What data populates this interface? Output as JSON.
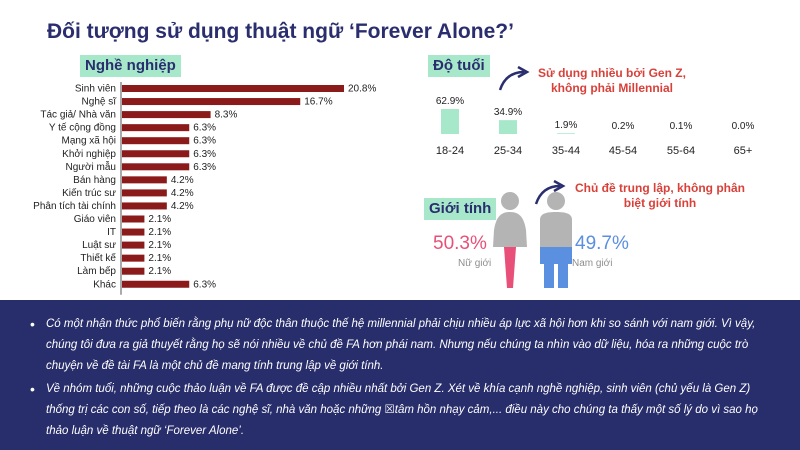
{
  "title": "Đối tượng sử dụng thuật ngữ ‘Forever Alone?’",
  "sections": {
    "occupation": "Nghề nghiệp",
    "age": "Độ tuổi",
    "gender": "Giới tính"
  },
  "chart_data": [
    {
      "type": "bar",
      "orientation": "horizontal",
      "title": "Nghề nghiệp",
      "categories": [
        "Sinh viên",
        "Nghệ sĩ",
        "Tác giả/ Nhà văn",
        "Y tế cộng đồng",
        "Mạng xã hội",
        "Khởi nghiệp",
        "Người mẫu",
        "Bán hàng",
        "Kiến trúc sư",
        "Phân tích tài chính",
        "Giáo viên",
        "IT",
        "Luật sư",
        "Thiết kế",
        "Làm bếp",
        "Khác"
      ],
      "values": [
        20.8,
        16.7,
        8.3,
        6.3,
        6.3,
        6.3,
        6.3,
        4.2,
        4.2,
        4.2,
        2.1,
        2.1,
        2.1,
        2.1,
        2.1,
        6.3
      ],
      "value_labels": [
        "20.8%",
        "16.7%",
        "8.3%",
        "6.3%",
        "6.3%",
        "6.3%",
        "6.3%",
        "4.2%",
        "4.2%",
        "4.2%",
        "2.1%",
        "2.1%",
        "2.1%",
        "2.1%",
        "2.1%",
        "6.3%"
      ],
      "unit": "%",
      "bar_color": "#8b1a1a",
      "xlim": [
        0,
        20.8
      ]
    },
    {
      "type": "bar",
      "orientation": "vertical",
      "title": "Độ tuổi",
      "categories": [
        "18-24",
        "25-34",
        "35-44",
        "45-54",
        "55-64",
        "65+"
      ],
      "values": [
        62.9,
        34.9,
        1.9,
        0.2,
        0.1,
        0.0
      ],
      "value_labels": [
        "62.9%",
        "34.9%",
        "1.9%",
        "0.2%",
        "0.1%",
        "0.0%"
      ],
      "unit": "%",
      "bar_color": "#a7e8cb",
      "ylim": [
        0,
        62.9
      ]
    },
    {
      "type": "pie",
      "title": "Giới tính",
      "categories": [
        "Nữ giới",
        "Nam giới"
      ],
      "values": [
        50.3,
        49.7
      ],
      "value_labels": [
        "50.3%",
        "49.7%"
      ],
      "colors": [
        "#e8507a",
        "#5b8fe0"
      ],
      "figure_head_color": "#b4b4b4"
    }
  ],
  "callouts": {
    "age_line1": "Sử dụng nhiều bởi Gen Z,",
    "age_line2": "không phải Millennial",
    "gender_line1": "Chủ đề trung lập, không phân",
    "gender_line2": "biệt giới tính"
  },
  "summary": [
    "Có một nhận thức phổ biến rằng phụ nữ độc thân thuộc thế hệ millennial phải chịu nhiều áp lực xã hội hơn khi so sánh với nam giới. Vì vậy, chúng tôi đưa ra giả thuyết rằng họ sẽ nói nhiều về chủ đề FA hơn phái nam. Nhưng nếu chúng ta nhìn vào dữ liệu, hóa ra những cuộc trò chuyện về đề tài FA là một chủ đề mang tính trung lập về giới tính.",
    "Về nhóm tuổi, những cuộc thảo luận về FA được đề cập nhiều nhất bởi Gen Z. Xét về khía cạnh nghề nghiệp, sinh viên (chủ yếu là Gen Z) thống trị các con số, tiếp theo là các nghệ sĩ, nhà văn hoặc những ☒tâm hồn nhạy cảm,... điều này cho chúng ta thấy một số lý do vì sao họ thảo luận về thuật ngữ ‘Forever Alone’."
  ],
  "colors": {
    "title": "#2a2e6e",
    "callout": "#d8413a",
    "panel_bg": "#282d6b"
  }
}
